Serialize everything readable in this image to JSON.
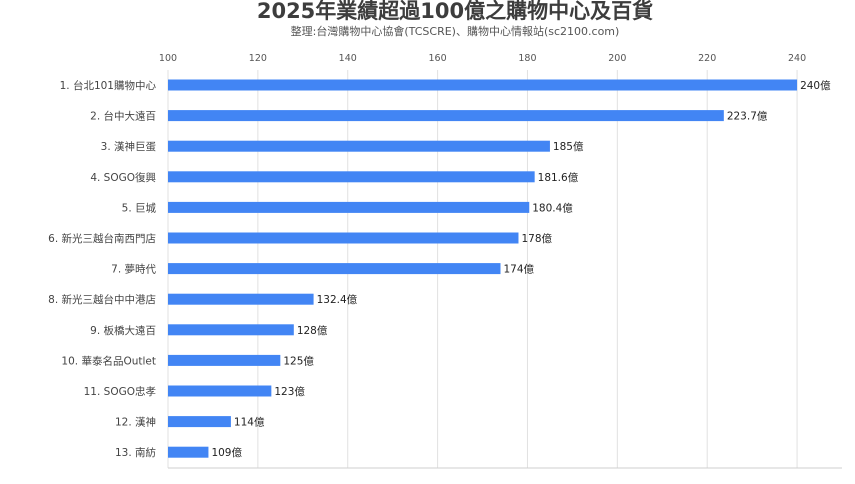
{
  "chart_data": {
    "type": "bar",
    "orientation": "horizontal",
    "title": "2025年業績超過100億之購物中心及百貨",
    "subtitle": "整理:台灣購物中心協會(TCSCRE)、購物中心情報站(sc2100.com)",
    "categories": [
      "1. 台北101購物中心",
      "2. 台中大遠百",
      "3. 漢神巨蛋",
      "4. SOGO復興",
      "5. 巨城",
      "6. 新光三越台南西門店",
      "7. 夢時代",
      "8. 新光三越台中中港店",
      "9. 板橋大遠百",
      "10. 華泰名品Outlet",
      "11. SOGO忠孝",
      "12. 漢神",
      "13. 南紡"
    ],
    "values": [
      240,
      223.7,
      185,
      181.6,
      180.4,
      178,
      174,
      132.4,
      128,
      125,
      123,
      114,
      109
    ],
    "value_labels": [
      "240億",
      "223.7億",
      "185億",
      "181.6億",
      "180.4億",
      "178億",
      "174億",
      "132.4億",
      "128億",
      "125億",
      "123億",
      "114億",
      "109億"
    ],
    "xlim": [
      100,
      250
    ],
    "xticks": [
      "100",
      "120",
      "140",
      "160",
      "180",
      "200",
      "220",
      "240"
    ],
    "tick_values": [
      100,
      120,
      140,
      160,
      180,
      200,
      220,
      240
    ],
    "xlabel": "",
    "ylabel": "",
    "grid": true,
    "colors": {
      "bar": "#4285f4",
      "grid": "#e1e1e1"
    }
  }
}
